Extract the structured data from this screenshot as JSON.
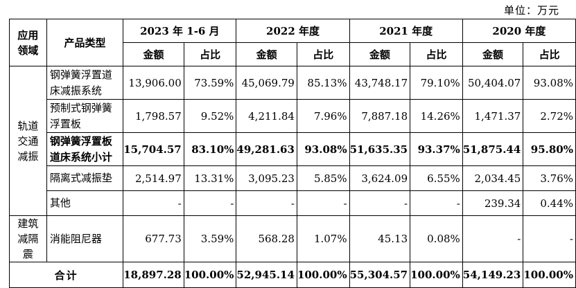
{
  "unit_label": "单位：万元",
  "header": {
    "domain": "应用领域",
    "type": "产品类型",
    "periods": [
      "2023 年 1-6 月",
      "2022 年度",
      "2021 年度",
      "2020 年度"
    ],
    "amount": "金额",
    "ratio": "占比"
  },
  "categories": {
    "rail": "轨道交通减振",
    "building": "建筑减隔震"
  },
  "rows": [
    {
      "label": "钢弹簧浮置道床减振系统",
      "values": [
        "13,906.00",
        "73.59%",
        "45,069.79",
        "85.13%",
        "43,748.17",
        "79.10%",
        "50,404.07",
        "93.08%"
      ]
    },
    {
      "label": "预制式钢弹簧浮置板",
      "values": [
        "1,798.57",
        "9.52%",
        "4,211.84",
        "7.96%",
        "7,887.18",
        "14.26%",
        "1,471.37",
        "2.72%"
      ]
    },
    {
      "label": "钢弹簧浮置板道床系统小计",
      "values": [
        "15,704.57",
        "83.10%",
        "49,281.63",
        "93.08%",
        "51,635.35",
        "93.37%",
        "51,875.44",
        "95.80%"
      ]
    },
    {
      "label": "隔离式减振垫",
      "values": [
        "2,514.97",
        "13.31%",
        "3,095.23",
        "5.85%",
        "3,624.09",
        "6.55%",
        "2,034.45",
        "3.76%"
      ]
    },
    {
      "label": "其他",
      "values": [
        "-",
        "-",
        "-",
        "-",
        "-",
        "-",
        "239.34",
        "0.44%"
      ]
    },
    {
      "label": "消能阻尼器",
      "values": [
        "677.73",
        "3.59%",
        "568.28",
        "1.07%",
        "45.13",
        "0.08%",
        "-",
        "-"
      ]
    }
  ],
  "total": {
    "label": "合计",
    "values": [
      "18,897.28",
      "100.00%",
      "52,945.14",
      "100.00%",
      "55,304.57",
      "100.00%",
      "54,149.23",
      "100.00%"
    ]
  }
}
